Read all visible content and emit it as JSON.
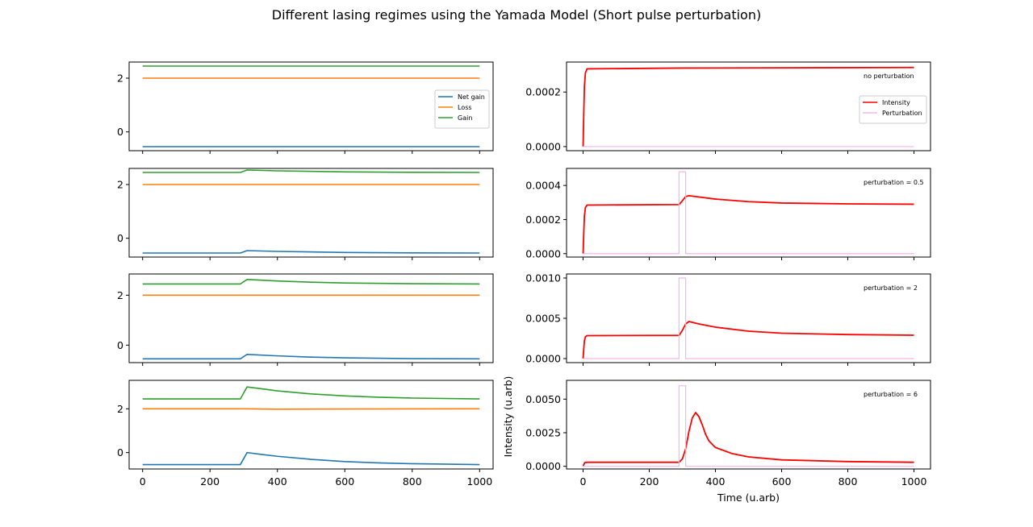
{
  "figure": {
    "title": "Different lasing regimes using the Yamada Model (Short pulse perturbation)"
  },
  "chart_data": [
    {
      "panel": "left-1",
      "type": "line",
      "ylim": [
        -0.7,
        2.6
      ],
      "xlim": [
        -40,
        1040
      ],
      "yticks": [
        0,
        2
      ],
      "ytick_labels": [
        "0",
        "2"
      ],
      "legend": {
        "placement": "right",
        "entries": [
          "Net gain",
          "Loss",
          "Gain"
        ]
      },
      "series": [
        {
          "name": "Net gain",
          "color": "#1f77b4",
          "points": [
            [
              0,
              -0.55
            ],
            [
              1000,
              -0.55
            ]
          ]
        },
        {
          "name": "Loss",
          "color": "#ff7f0e",
          "points": [
            [
              0,
              2.0
            ],
            [
              1000,
              2.0
            ]
          ]
        },
        {
          "name": "Gain",
          "color": "#2ca02c",
          "points": [
            [
              0,
              2.45
            ],
            [
              1000,
              2.45
            ]
          ]
        }
      ]
    },
    {
      "panel": "right-1",
      "type": "line",
      "ylim": [
        -1.5e-05,
        0.00031
      ],
      "xlim": [
        -50,
        1050
      ],
      "yticks": [
        0,
        0.0002
      ],
      "ytick_labels": [
        "0.0000",
        "0.0002"
      ],
      "annotation": "no perturbation",
      "legend": {
        "placement": "right",
        "entries": [
          "Intensity",
          "Perturbation"
        ]
      },
      "series": [
        {
          "name": "Intensity",
          "color": "#ff0000",
          "points": [
            [
              0,
              0
            ],
            [
              2,
              0.00012
            ],
            [
              4,
              0.00022
            ],
            [
              7,
              0.00027
            ],
            [
              12,
              0.000285
            ],
            [
              300,
              0.000288
            ],
            [
              1000,
              0.00029
            ]
          ]
        },
        {
          "name": "Perturbation",
          "color": "#f5b5ee",
          "points": [
            [
              0,
              0
            ],
            [
              1000,
              0
            ]
          ]
        }
      ]
    },
    {
      "panel": "left-2",
      "type": "line",
      "ylim": [
        -0.7,
        2.6
      ],
      "xlim": [
        -40,
        1040
      ],
      "yticks": [
        0,
        2
      ],
      "ytick_labels": [
        "0",
        "2"
      ],
      "series": [
        {
          "name": "Net gain",
          "color": "#1f77b4",
          "points": [
            [
              0,
              -0.55
            ],
            [
              290,
              -0.55
            ],
            [
              310,
              -0.46
            ],
            [
              400,
              -0.49
            ],
            [
              600,
              -0.53
            ],
            [
              800,
              -0.545
            ],
            [
              1000,
              -0.55
            ]
          ]
        },
        {
          "name": "Loss",
          "color": "#ff7f0e",
          "points": [
            [
              0,
              2.0
            ],
            [
              1000,
              2.0
            ]
          ]
        },
        {
          "name": "Gain",
          "color": "#2ca02c",
          "points": [
            [
              0,
              2.45
            ],
            [
              290,
              2.45
            ],
            [
              310,
              2.54
            ],
            [
              400,
              2.51
            ],
            [
              600,
              2.47
            ],
            [
              800,
              2.455
            ],
            [
              1000,
              2.45
            ]
          ]
        }
      ]
    },
    {
      "panel": "right-2",
      "type": "line",
      "ylim": [
        -2e-05,
        0.0005
      ],
      "xlim": [
        -50,
        1050
      ],
      "yticks": [
        0,
        0.0002,
        0.0004
      ],
      "ytick_labels": [
        "0.0000",
        "0.0002",
        "0.0004"
      ],
      "annotation": "perturbation = 0.5",
      "series": [
        {
          "name": "Intensity",
          "color": "#ff0000",
          "points": [
            [
              0,
              0
            ],
            [
              2,
              0.00012
            ],
            [
              4,
              0.00022
            ],
            [
              7,
              0.00027
            ],
            [
              12,
              0.000285
            ],
            [
              290,
              0.000288
            ],
            [
              300,
              0.00031
            ],
            [
              310,
              0.000335
            ],
            [
              320,
              0.00034
            ],
            [
              400,
              0.00032
            ],
            [
              500,
              0.000305
            ],
            [
              600,
              0.000297
            ],
            [
              800,
              0.000292
            ],
            [
              1000,
              0.00029
            ]
          ]
        },
        {
          "name": "Perturbation",
          "color": "#f5b5ee",
          "points": [
            [
              0,
              0
            ],
            [
              290,
              0
            ],
            [
              290,
              0.00048
            ],
            [
              310,
              0.00048
            ],
            [
              310,
              0
            ],
            [
              1000,
              0
            ]
          ]
        }
      ]
    },
    {
      "panel": "left-3",
      "type": "line",
      "ylim": [
        -0.7,
        2.85
      ],
      "xlim": [
        -40,
        1040
      ],
      "yticks": [
        0,
        2
      ],
      "ytick_labels": [
        "0",
        "2"
      ],
      "series": [
        {
          "name": "Net gain",
          "color": "#1f77b4",
          "points": [
            [
              0,
              -0.55
            ],
            [
              290,
              -0.55
            ],
            [
              310,
              -0.37
            ],
            [
              400,
              -0.43
            ],
            [
              500,
              -0.48
            ],
            [
              600,
              -0.51
            ],
            [
              800,
              -0.54
            ],
            [
              1000,
              -0.55
            ]
          ]
        },
        {
          "name": "Loss",
          "color": "#ff7f0e",
          "points": [
            [
              0,
              2.0
            ],
            [
              1000,
              2.0
            ]
          ]
        },
        {
          "name": "Gain",
          "color": "#2ca02c",
          "points": [
            [
              0,
              2.45
            ],
            [
              290,
              2.45
            ],
            [
              310,
              2.63
            ],
            [
              400,
              2.57
            ],
            [
              500,
              2.52
            ],
            [
              600,
              2.49
            ],
            [
              800,
              2.46
            ],
            [
              1000,
              2.45
            ]
          ]
        }
      ]
    },
    {
      "panel": "right-3",
      "type": "line",
      "ylim": [
        -5e-05,
        0.00105
      ],
      "xlim": [
        -50,
        1050
      ],
      "yticks": [
        0,
        0.0005,
        0.001
      ],
      "ytick_labels": [
        "0.0000",
        "0.0005",
        "0.0010"
      ],
      "annotation": "perturbation = 2",
      "series": [
        {
          "name": "Intensity",
          "color": "#ff0000",
          "points": [
            [
              0,
              0
            ],
            [
              2,
              0.00012
            ],
            [
              4,
              0.00022
            ],
            [
              7,
              0.00027
            ],
            [
              12,
              0.000285
            ],
            [
              290,
              0.000288
            ],
            [
              300,
              0.00035
            ],
            [
              310,
              0.00043
            ],
            [
              320,
              0.00046
            ],
            [
              350,
              0.00043
            ],
            [
              400,
              0.00039
            ],
            [
              500,
              0.00034
            ],
            [
              600,
              0.000315
            ],
            [
              800,
              0.000298
            ],
            [
              1000,
              0.00029
            ]
          ]
        },
        {
          "name": "Perturbation",
          "color": "#f5b5ee",
          "points": [
            [
              0,
              0
            ],
            [
              290,
              0
            ],
            [
              290,
              0.001
            ],
            [
              310,
              0.001
            ],
            [
              310,
              0
            ],
            [
              1000,
              0
            ]
          ]
        }
      ]
    },
    {
      "panel": "left-4",
      "type": "line",
      "ylim": [
        -0.75,
        3.3
      ],
      "xlim": [
        -40,
        1040
      ],
      "yticks": [
        0,
        2
      ],
      "ytick_labels": [
        "0",
        "2"
      ],
      "xticks": [
        0,
        200,
        400,
        600,
        800,
        1000
      ],
      "xtick_labels": [
        "0",
        "200",
        "400",
        "600",
        "800",
        "1000"
      ],
      "series": [
        {
          "name": "Net gain",
          "color": "#1f77b4",
          "points": [
            [
              0,
              -0.55
            ],
            [
              290,
              -0.55
            ],
            [
              310,
              0.0
            ],
            [
              350,
              -0.08
            ],
            [
              400,
              -0.17
            ],
            [
              500,
              -0.31
            ],
            [
              600,
              -0.41
            ],
            [
              700,
              -0.47
            ],
            [
              800,
              -0.51
            ],
            [
              1000,
              -0.55
            ]
          ]
        },
        {
          "name": "Loss",
          "color": "#ff7f0e",
          "points": [
            [
              0,
              2.0
            ],
            [
              300,
              2.0
            ],
            [
              400,
              1.98
            ],
            [
              600,
              1.99
            ],
            [
              1000,
              2.0
            ]
          ]
        },
        {
          "name": "Gain",
          "color": "#2ca02c",
          "points": [
            [
              0,
              2.45
            ],
            [
              290,
              2.45
            ],
            [
              310,
              3.0
            ],
            [
              350,
              2.92
            ],
            [
              400,
              2.82
            ],
            [
              500,
              2.68
            ],
            [
              600,
              2.59
            ],
            [
              700,
              2.53
            ],
            [
              800,
              2.49
            ],
            [
              1000,
              2.45
            ]
          ]
        }
      ]
    },
    {
      "panel": "right-4",
      "type": "line",
      "ylim": [
        -0.0002,
        0.0064
      ],
      "xlim": [
        -50,
        1050
      ],
      "yticks": [
        0,
        0.0025,
        0.005
      ],
      "ytick_labels": [
        "0.0000",
        "0.0025",
        "0.0050"
      ],
      "xticks": [
        0,
        200,
        400,
        600,
        800,
        1000
      ],
      "xtick_labels": [
        "0",
        "200",
        "400",
        "600",
        "800",
        "1000"
      ],
      "xlabel": "Time (u.arb)",
      "ylabel": "Intensity (u.arb)",
      "annotation": "perturbation = 6",
      "series": [
        {
          "name": "Intensity",
          "color": "#ff0000",
          "points": [
            [
              0,
              0
            ],
            [
              5,
              0.00028
            ],
            [
              12,
              0.0003
            ],
            [
              290,
              0.0003
            ],
            [
              300,
              0.00055
            ],
            [
              310,
              0.0013
            ],
            [
              320,
              0.0026
            ],
            [
              330,
              0.0036
            ],
            [
              340,
              0.004
            ],
            [
              350,
              0.0037
            ],
            [
              360,
              0.0031
            ],
            [
              370,
              0.0024
            ],
            [
              380,
              0.0019
            ],
            [
              400,
              0.0014
            ],
            [
              450,
              0.00095
            ],
            [
              500,
              0.0007
            ],
            [
              600,
              0.00048
            ],
            [
              800,
              0.00035
            ],
            [
              1000,
              0.0003
            ]
          ]
        },
        {
          "name": "Perturbation",
          "color": "#f5b5ee",
          "points": [
            [
              0,
              0
            ],
            [
              290,
              0
            ],
            [
              290,
              0.006
            ],
            [
              310,
              0.006
            ],
            [
              310,
              0
            ],
            [
              1000,
              0
            ]
          ]
        }
      ]
    }
  ]
}
